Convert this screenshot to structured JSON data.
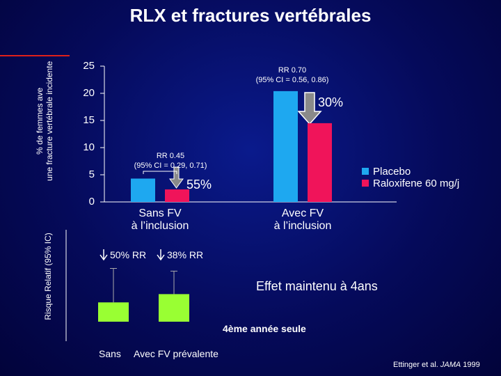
{
  "title": "RLX et fractures vertébrales",
  "chart_data": [
    {
      "type": "bar",
      "y_label": "% de femmes ave\nune fracture vertébrale incidente",
      "categories": [
        "Sans FV\nà l’inclusion",
        "Avec FV\nà l’inclusion"
      ],
      "series": [
        {
          "name": "Placebo",
          "color": "#1ea8f0",
          "values": [
            4.3,
            20.4
          ]
        },
        {
          "name": "Raloxifene 60 mg/j",
          "color": "#f0145a",
          "values": [
            2.3,
            14.5
          ]
        }
      ],
      "ylim": [
        0,
        25
      ],
      "yticks": [
        0,
        5,
        10,
        15,
        20,
        25
      ],
      "legend": "right",
      "annotations": [
        "RR 0.70",
        "(95% CI = 0.56, 0.86)",
        "30%",
        "RR 0.45",
        "(95% CI = 0.29, 0.71)",
        "55%"
      ]
    },
    {
      "type": "bar",
      "y_label": "Risque Relatif (95% IC)",
      "categories": [
        "Sans",
        "Avec FV prévalente"
      ],
      "values": [
        0.21,
        0.3
      ],
      "errors": [
        0.37,
        0.25
      ],
      "color": "#99ff33",
      "ylim": [
        0,
        1
      ],
      "annotations": [
        "50% RR",
        "38% RR",
        "Effet maintenu à 4ans",
        "4ème année seule"
      ]
    }
  ],
  "source": {
    "authors": "Ettinger et al.",
    "journal": "JAMA",
    "year": 1999
  }
}
